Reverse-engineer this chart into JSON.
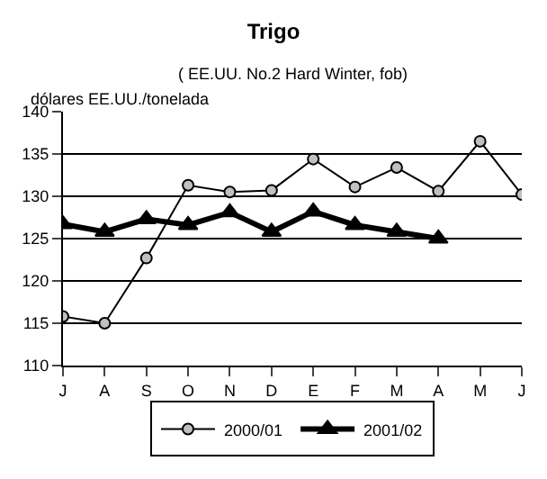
{
  "chart_data": {
    "type": "line",
    "title": "Trigo",
    "subtitle": "( EE.UU. No.2 Hard Winter, fob)",
    "ylabel": "dólares EE.UU./tonelada",
    "categories": [
      "J",
      "A",
      "S",
      "O",
      "N",
      "D",
      "E",
      "F",
      "M",
      "A",
      "M",
      "J"
    ],
    "series": [
      {
        "name": "2000/01",
        "color": "#000000",
        "marker": "circle",
        "values": [
          115.8,
          115.0,
          122.7,
          131.3,
          130.5,
          130.7,
          134.4,
          131.1,
          133.4,
          130.6,
          136.5,
          130.2
        ]
      },
      {
        "name": "2001/02",
        "color": "#000000",
        "marker": "triangle",
        "values": [
          126.7,
          125.8,
          127.3,
          126.6,
          128.1,
          125.8,
          128.2,
          126.6,
          125.8,
          125.0,
          null,
          null
        ]
      }
    ],
    "ylim": [
      110,
      140
    ],
    "yticks": [
      110,
      115,
      120,
      125,
      130,
      135,
      140
    ],
    "grid": "y",
    "legend": "bottom",
    "line_style": "solid"
  }
}
